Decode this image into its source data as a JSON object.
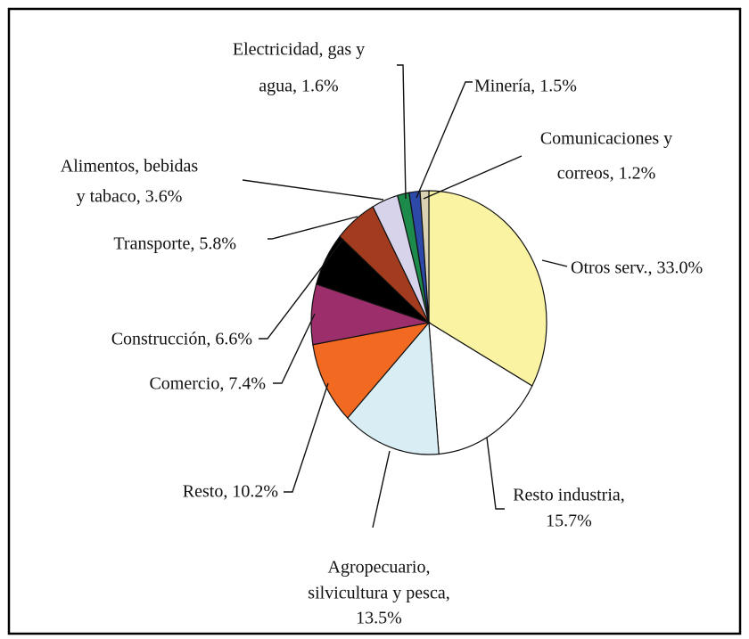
{
  "chart_data": {
    "type": "pie",
    "labels": [
      [
        "Otros serv., 33.0%"
      ],
      [
        "Resto industria,",
        "15.7%"
      ],
      [
        "Agropecuario,",
        "silvicultura y pesca,",
        "13.5%"
      ],
      [
        "Resto, 10.2%"
      ],
      [
        "Comercio, 7.4%"
      ],
      [
        "Construcción, 6.6%"
      ],
      [
        "Transporte, 5.8%"
      ],
      [
        "Alimentos, bebidas",
        "y tabaco, 3.6%"
      ],
      [
        "Electricidad, gas y",
        "agua, 1.6%"
      ],
      [
        "Minería, 1.5%"
      ],
      [
        "Comunicaciones y",
        "correos, 1.2%"
      ]
    ],
    "values": [
      33.0,
      15.7,
      13.5,
      10.2,
      7.4,
      6.6,
      5.8,
      3.6,
      1.6,
      1.5,
      1.2
    ],
    "colors": [
      "#f9f3a2",
      "#ffffff",
      "#d8edf4",
      "#f26a22",
      "#9c2f6b",
      "#000000",
      "#a33c1e",
      "#d6d3ea",
      "#1b8a4b",
      "#2c49a8",
      "#d9d1b2"
    ]
  }
}
